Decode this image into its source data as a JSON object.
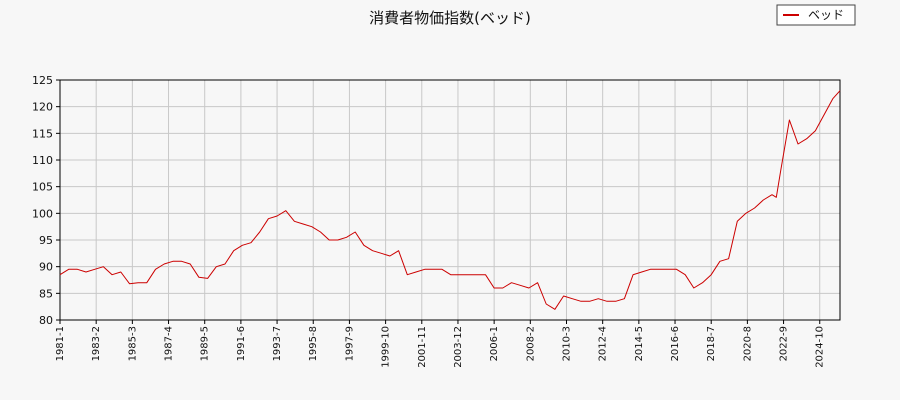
{
  "chart_data": {
    "type": "line",
    "title": "消費者物価指数(ベッド)",
    "xlabel": "",
    "ylabel": "",
    "ylim": [
      80,
      125
    ],
    "yticks": [
      80,
      85,
      90,
      95,
      100,
      105,
      110,
      115,
      120,
      125
    ],
    "xticks": [
      "1981-1",
      "1983-2",
      "1985-3",
      "1987-4",
      "1989-5",
      "1991-6",
      "1993-7",
      "1995-8",
      "1997-9",
      "1999-10",
      "2001-11",
      "2003-12",
      "2006-1",
      "2008-2",
      "2010-3",
      "2012-4",
      "2014-5",
      "2016-6",
      "2018-7",
      "2020-8",
      "2022-9",
      "2024-10"
    ],
    "xlim": [
      "1981-1",
      "2025-12"
    ],
    "grid": true,
    "legend": "top-right",
    "series": [
      {
        "name": "ベッド",
        "color": "#cc0000",
        "x": [
          "1981-1",
          "1981-7",
          "1982-1",
          "1982-7",
          "1983-1",
          "1983-7",
          "1984-1",
          "1984-7",
          "1985-1",
          "1985-7",
          "1986-1",
          "1986-7",
          "1987-1",
          "1987-7",
          "1988-1",
          "1988-7",
          "1989-1",
          "1989-7",
          "1990-1",
          "1990-7",
          "1991-1",
          "1991-7",
          "1992-1",
          "1992-7",
          "1993-1",
          "1993-7",
          "1994-1",
          "1994-7",
          "1995-1",
          "1995-7",
          "1996-1",
          "1996-7",
          "1997-1",
          "1997-7",
          "1998-1",
          "1998-7",
          "1999-1",
          "1999-7",
          "2000-1",
          "2000-7",
          "2001-1",
          "2001-7",
          "2002-1",
          "2002-7",
          "2003-1",
          "2003-7",
          "2004-1",
          "2004-7",
          "2005-1",
          "2005-7",
          "2006-1",
          "2006-7",
          "2007-1",
          "2007-7",
          "2008-1",
          "2008-7",
          "2009-1",
          "2009-7",
          "2010-1",
          "2010-7",
          "2011-1",
          "2011-7",
          "2012-1",
          "2012-7",
          "2013-1",
          "2013-7",
          "2014-1",
          "2014-7",
          "2015-1",
          "2015-7",
          "2016-1",
          "2016-7",
          "2017-1",
          "2017-7",
          "2018-1",
          "2018-7",
          "2019-1",
          "2019-7",
          "2020-1",
          "2020-7",
          "2021-1",
          "2021-7",
          "2022-1",
          "2022-4",
          "2022-7",
          "2023-1",
          "2023-7",
          "2024-1",
          "2024-7",
          "2025-1",
          "2025-7",
          "2025-12"
        ],
        "values": [
          88.5,
          89.5,
          89.5,
          89.0,
          89.5,
          90.0,
          88.5,
          89.0,
          86.8,
          87.0,
          87.0,
          89.5,
          90.5,
          91.0,
          91.0,
          90.5,
          88.0,
          87.8,
          90.0,
          90.5,
          93.0,
          94.0,
          94.5,
          96.5,
          99.0,
          99.5,
          100.5,
          98.5,
          98.0,
          97.5,
          96.5,
          95.0,
          95.0,
          95.5,
          96.5,
          94.0,
          93.0,
          92.5,
          92.0,
          93.0,
          88.5,
          89.0,
          89.5,
          89.5,
          89.5,
          88.5,
          88.5,
          88.5,
          88.5,
          88.5,
          86.0,
          86.0,
          87.0,
          86.5,
          86.0,
          87.0,
          83.0,
          82.0,
          84.5,
          84.0,
          83.5,
          83.5,
          84.0,
          83.5,
          83.5,
          84.0,
          88.5,
          89.0,
          89.5,
          89.5,
          89.5,
          89.5,
          88.5,
          86.0,
          87.0,
          88.5,
          91.0,
          91.5,
          98.5,
          100.0,
          101.0,
          102.5,
          103.5,
          103.0,
          108.0,
          117.5,
          113.0,
          114.0,
          115.5,
          118.5,
          121.5,
          123.0
        ]
      }
    ]
  }
}
